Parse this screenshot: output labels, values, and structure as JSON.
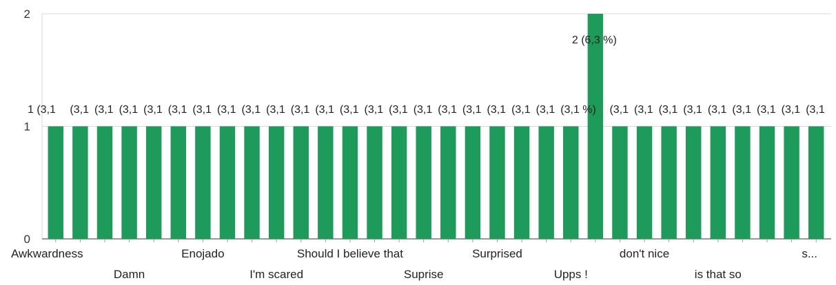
{
  "chart_data": {
    "type": "bar",
    "color": "#1e9b5a",
    "ylim": [
      0,
      2
    ],
    "yticks": [
      0,
      1,
      2
    ],
    "grid": true,
    "values": [
      1,
      1,
      1,
      1,
      1,
      1,
      1,
      1,
      1,
      1,
      1,
      1,
      1,
      1,
      1,
      1,
      1,
      1,
      1,
      1,
      1,
      1,
      2,
      1,
      1,
      1,
      1,
      1,
      1,
      1,
      1,
      1
    ],
    "data_labels": [
      "1 (3,1",
      "(3,1",
      "(3,1",
      "(3,1",
      "(3,1",
      "(3,1",
      "(3,1",
      "(3,1",
      "(3,1",
      "(3,1",
      "(3,1",
      "(3,1",
      "(3,1",
      "(3,1",
      "(3,1",
      "(3,1",
      "(3,1",
      "(3,1",
      "(3,1",
      "(3,1",
      "(3,1",
      "(3,1 %)",
      "2 (6,3 %)",
      "(3,1",
      "(3,1",
      "(3,1",
      "(3,1",
      "(3,1",
      "(3,1",
      "(3,1",
      "(3,1",
      "(3,1"
    ],
    "categories_shown": [
      {
        "index": 0,
        "label": "Awkwardness",
        "row": 0
      },
      {
        "index": 3,
        "label": "Damn",
        "row": 1
      },
      {
        "index": 6,
        "label": "Enojado",
        "row": 0
      },
      {
        "index": 9,
        "label": "I'm scared",
        "row": 1
      },
      {
        "index": 12,
        "label": "Should I believe that",
        "row": 0
      },
      {
        "index": 15,
        "label": "Suprise",
        "row": 1
      },
      {
        "index": 18,
        "label": "Surprised",
        "row": 0
      },
      {
        "index": 21,
        "label": "Upps !",
        "row": 1
      },
      {
        "index": 24,
        "label": "don't nice",
        "row": 0
      },
      {
        "index": 27,
        "label": "is that so",
        "row": 1
      },
      {
        "index": 30,
        "label": "s...",
        "row": 0
      }
    ]
  }
}
